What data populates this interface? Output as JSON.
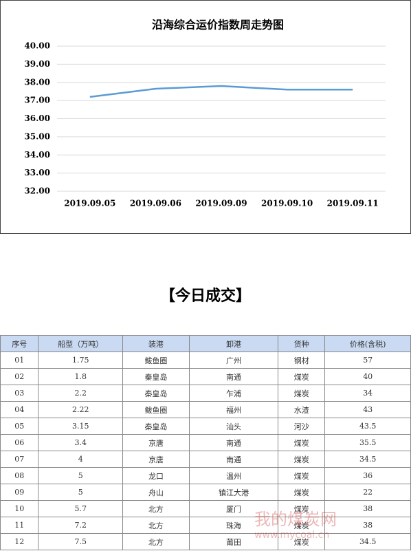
{
  "chart_data": {
    "type": "line",
    "title": "沿海综合运价指数周走势图",
    "categories": [
      "2019.09.05",
      "2019.09.06",
      "2019.09.09",
      "2019.09.10",
      "2019.09.11"
    ],
    "series": [
      {
        "name": "沿海综合运价指数",
        "color": "#5b9bd5",
        "values": [
          37.2,
          37.65,
          37.8,
          37.6,
          37.6
        ]
      }
    ],
    "ylim": [
      32,
      40
    ],
    "yticks": [
      {
        "value": 32,
        "label": "32.00"
      },
      {
        "value": 33,
        "label": "33.00"
      },
      {
        "value": 34,
        "label": "34.00"
      },
      {
        "value": 35,
        "label": "35.00"
      },
      {
        "value": 36,
        "label": "36.00"
      },
      {
        "value": 37,
        "label": "37.00"
      },
      {
        "value": 38,
        "label": "38.00"
      },
      {
        "value": 39,
        "label": "39.00"
      },
      {
        "value": 40,
        "label": "40.00"
      }
    ],
    "grid": true
  },
  "section": {
    "title": "【今日成交】"
  },
  "table": {
    "header": [
      "序号",
      "船型（万吨）",
      "装港",
      "卸港",
      "货种",
      "价格(含税)"
    ],
    "rows": [
      [
        "01",
        "1.75",
        "鲅鱼圈",
        "广州",
        "钢材",
        "57"
      ],
      [
        "02",
        "1.8",
        "秦皇岛",
        "南通",
        "煤炭",
        "40"
      ],
      [
        "03",
        "2.2",
        "秦皇岛",
        "乍浦",
        "煤炭",
        "34"
      ],
      [
        "04",
        "2.22",
        "鲅鱼圈",
        "福州",
        "水渣",
        "43"
      ],
      [
        "05",
        "3.15",
        "秦皇岛",
        "汕头",
        "河沙",
        "43.5"
      ],
      [
        "06",
        "3.4",
        "京唐",
        "南通",
        "煤炭",
        "35.5"
      ],
      [
        "07",
        "4",
        "京唐",
        "南通",
        "煤炭",
        "34.5"
      ],
      [
        "08",
        "5",
        "龙口",
        "温州",
        "煤炭",
        "36"
      ],
      [
        "09",
        "5",
        "舟山",
        "镇江大港",
        "煤炭",
        "22"
      ],
      [
        "10",
        "5.7",
        "北方",
        "厦门",
        "煤炭",
        "38"
      ],
      [
        "11",
        "7.2",
        "北方",
        "珠海",
        "煤炭",
        "38"
      ],
      [
        "12",
        "7.5",
        "北方",
        "莆田",
        "煤炭",
        "34.5"
      ]
    ]
  },
  "watermark": {
    "name": "我的煤炭网",
    "url": "www.mycoal.cn"
  }
}
